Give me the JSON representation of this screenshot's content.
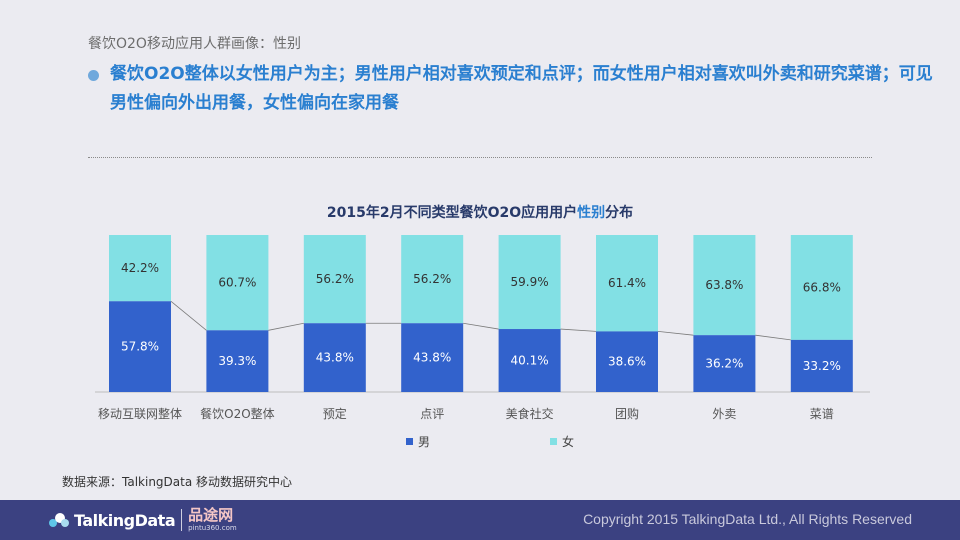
{
  "header": {
    "breadcrumb": "餐饮O2O移动应用人群画像：性别",
    "headline": "餐饮O2O整体以女性用户为主；男性用户相对喜欢预定和点评；而女性用户相对喜欢叫外卖和研究菜谱；可见男性偏向外出用餐，女性偏向在家用餐"
  },
  "chart_title": {
    "prefix": "2015年2月不同类型餐饮O2O应用用户",
    "highlight": "性别",
    "suffix": "分布"
  },
  "colors": {
    "male": "#3262cc",
    "female": "#82e0e4",
    "accent": "#2a7fd0",
    "footer": "#3b4181"
  },
  "chart_data": {
    "type": "bar",
    "stacked": true,
    "percent": true,
    "title": "2015年2月不同类型餐饮O2O应用用户性别分布",
    "categories": [
      "移动互联网整体",
      "餐饮O2O整体",
      "预定",
      "点评",
      "美食社交",
      "团购",
      "外卖",
      "菜谱"
    ],
    "series": [
      {
        "name": "男",
        "values": [
          57.8,
          39.3,
          43.8,
          43.8,
          40.1,
          38.6,
          36.2,
          33.2
        ],
        "labels": [
          "57.8%",
          "39.3%",
          "43.8%",
          "43.8%",
          "40.1%",
          "38.6%",
          "36.2%",
          "33.2%"
        ]
      },
      {
        "name": "女",
        "values": [
          42.2,
          60.7,
          56.2,
          56.2,
          59.9,
          61.4,
          63.8,
          66.8
        ],
        "labels": [
          "42.2%",
          "60.7%",
          "56.2%",
          "56.2%",
          "59.9%",
          "61.4%",
          "63.8%",
          "66.8%"
        ]
      }
    ],
    "ylim": [
      0,
      100
    ],
    "legend": "bottom-center",
    "connector_lines": true
  },
  "source": "数据来源：TalkingData 移动数据研究中心",
  "footer": {
    "logo_text": "TalkingData",
    "partner_name": "品途网",
    "partner_url": "pintu360.com",
    "copyright": "Copyright 2015 TalkingData Ltd., All Rights Reserved"
  }
}
